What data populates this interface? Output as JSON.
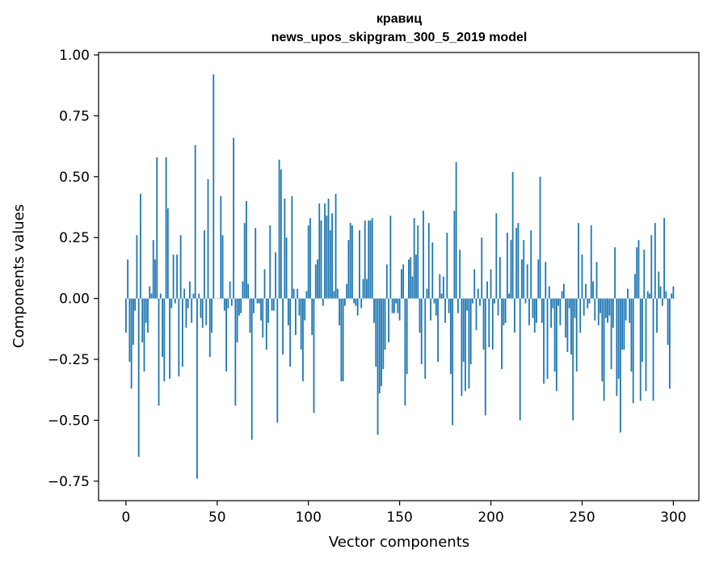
{
  "chart_data": {
    "type": "bar",
    "title_line1": "кравиц",
    "title_line2": "news_upos_skipgram_300_5_2019 model",
    "xlabel": "Vector components",
    "ylabel": "Components values",
    "xlim": [
      -15,
      314
    ],
    "ylim": [
      -0.83,
      1.01
    ],
    "xticks": [
      0,
      50,
      100,
      150,
      200,
      250,
      300
    ],
    "xtick_labels": [
      "0",
      "50",
      "100",
      "150",
      "200",
      "250",
      "300"
    ],
    "yticks": [
      -0.75,
      -0.5,
      -0.25,
      0.0,
      0.25,
      0.5,
      0.75,
      1.0
    ],
    "ytick_labels": [
      "−0.75",
      "−0.50",
      "−0.25",
      "0.00",
      "0.25",
      "0.50",
      "0.75",
      "1.00"
    ],
    "bar_color": "#1f77b4",
    "values": [
      -0.14,
      0.16,
      -0.26,
      -0.37,
      -0.19,
      -0.05,
      0.26,
      -0.65,
      0.43,
      -0.18,
      -0.3,
      -0.1,
      -0.14,
      0.05,
      0.02,
      0.24,
      0.16,
      0.58,
      -0.44,
      0.02,
      -0.24,
      -0.34,
      0.58,
      0.37,
      -0.33,
      -0.04,
      0.18,
      -0.02,
      0.18,
      -0.32,
      0.26,
      -0.28,
      0.04,
      -0.12,
      -0.04,
      0.07,
      -0.1,
      0.02,
      0.63,
      -0.74,
      0.02,
      -0.08,
      -0.12,
      0.28,
      -0.11,
      0.49,
      -0.24,
      -0.14,
      0.92,
      0.0,
      0.0,
      0.0,
      0.42,
      0.26,
      -0.05,
      -0.3,
      -0.04,
      0.07,
      -0.03,
      0.66,
      -0.44,
      -0.18,
      -0.07,
      -0.06,
      0.07,
      0.31,
      0.4,
      0.06,
      -0.14,
      -0.58,
      -0.06,
      0.29,
      -0.02,
      -0.02,
      -0.09,
      -0.16,
      0.12,
      -0.21,
      -0.1,
      0.3,
      -0.05,
      -0.05,
      0.19,
      -0.51,
      0.57,
      0.53,
      -0.23,
      0.41,
      0.25,
      -0.11,
      -0.28,
      0.42,
      0.04,
      -0.15,
      0.04,
      -0.07,
      -0.21,
      -0.34,
      -0.09,
      0.03,
      0.3,
      0.33,
      -0.15,
      -0.47,
      0.14,
      0.16,
      0.39,
      0.32,
      -0.03,
      0.39,
      0.34,
      0.41,
      0.28,
      0.35,
      0.03,
      0.43,
      0.04,
      -0.11,
      -0.34,
      -0.34,
      -0.03,
      0.06,
      0.24,
      0.31,
      0.3,
      -0.02,
      -0.03,
      -0.07,
      0.28,
      -0.04,
      0.08,
      0.32,
      0.08,
      0.32,
      0.32,
      0.33,
      -0.1,
      -0.28,
      -0.56,
      -0.39,
      -0.36,
      -0.29,
      -0.21,
      0.14,
      -0.18,
      0.34,
      -0.06,
      -0.06,
      -0.02,
      -0.06,
      -0.09,
      0.12,
      0.14,
      -0.44,
      -0.31,
      0.16,
      0.17,
      0.09,
      0.33,
      0.18,
      0.3,
      -0.14,
      -0.27,
      0.36,
      -0.33,
      0.04,
      0.31,
      -0.09,
      0.23,
      -0.02,
      -0.07,
      -0.26,
      0.1,
      0.02,
      0.09,
      -0.1,
      0.27,
      -0.06,
      -0.31,
      -0.52,
      0.36,
      0.56,
      -0.06,
      0.2,
      -0.4,
      -0.26,
      -0.38,
      -0.05,
      -0.37,
      -0.27,
      -0.02,
      0.12,
      -0.13,
      0.04,
      -0.03,
      0.25,
      -0.21,
      -0.48,
      0.07,
      -0.2,
      0.12,
      -0.21,
      -0.02,
      0.35,
      -0.07,
      0.17,
      -0.29,
      -0.11,
      -0.1,
      0.27,
      0.02,
      0.24,
      0.52,
      -0.14,
      0.29,
      0.31,
      -0.5,
      0.16,
      0.24,
      -0.02,
      0.14,
      -0.11,
      0.28,
      -0.08,
      -0.14,
      -0.1,
      0.16,
      0.5,
      -0.1,
      -0.35,
      0.15,
      -0.33,
      0.05,
      -0.12,
      -0.04,
      -0.3,
      -0.38,
      -0.03,
      -0.11,
      0.03,
      0.06,
      -0.16,
      -0.22,
      -0.04,
      -0.23,
      -0.5,
      -0.08,
      -0.3,
      0.31,
      -0.14,
      0.18,
      -0.07,
      0.06,
      -0.04,
      -0.02,
      0.3,
      0.07,
      -0.09,
      0.15,
      -0.11,
      -0.06,
      -0.34,
      -0.42,
      -0.08,
      -0.1,
      -0.07,
      -0.29,
      -0.12,
      0.21,
      -0.4,
      -0.33,
      -0.55,
      -0.21,
      -0.21,
      -0.09,
      0.04,
      -0.1,
      -0.3,
      -0.43,
      0.1,
      0.21,
      0.24,
      -0.42,
      -0.26,
      0.2,
      -0.38,
      0.03,
      0.02,
      0.26,
      -0.42,
      0.31,
      -0.14,
      0.11,
      0.05,
      -0.03,
      0.33,
      0.03,
      -0.19,
      -0.37,
      0.02,
      0.05,
      0.0
    ]
  }
}
